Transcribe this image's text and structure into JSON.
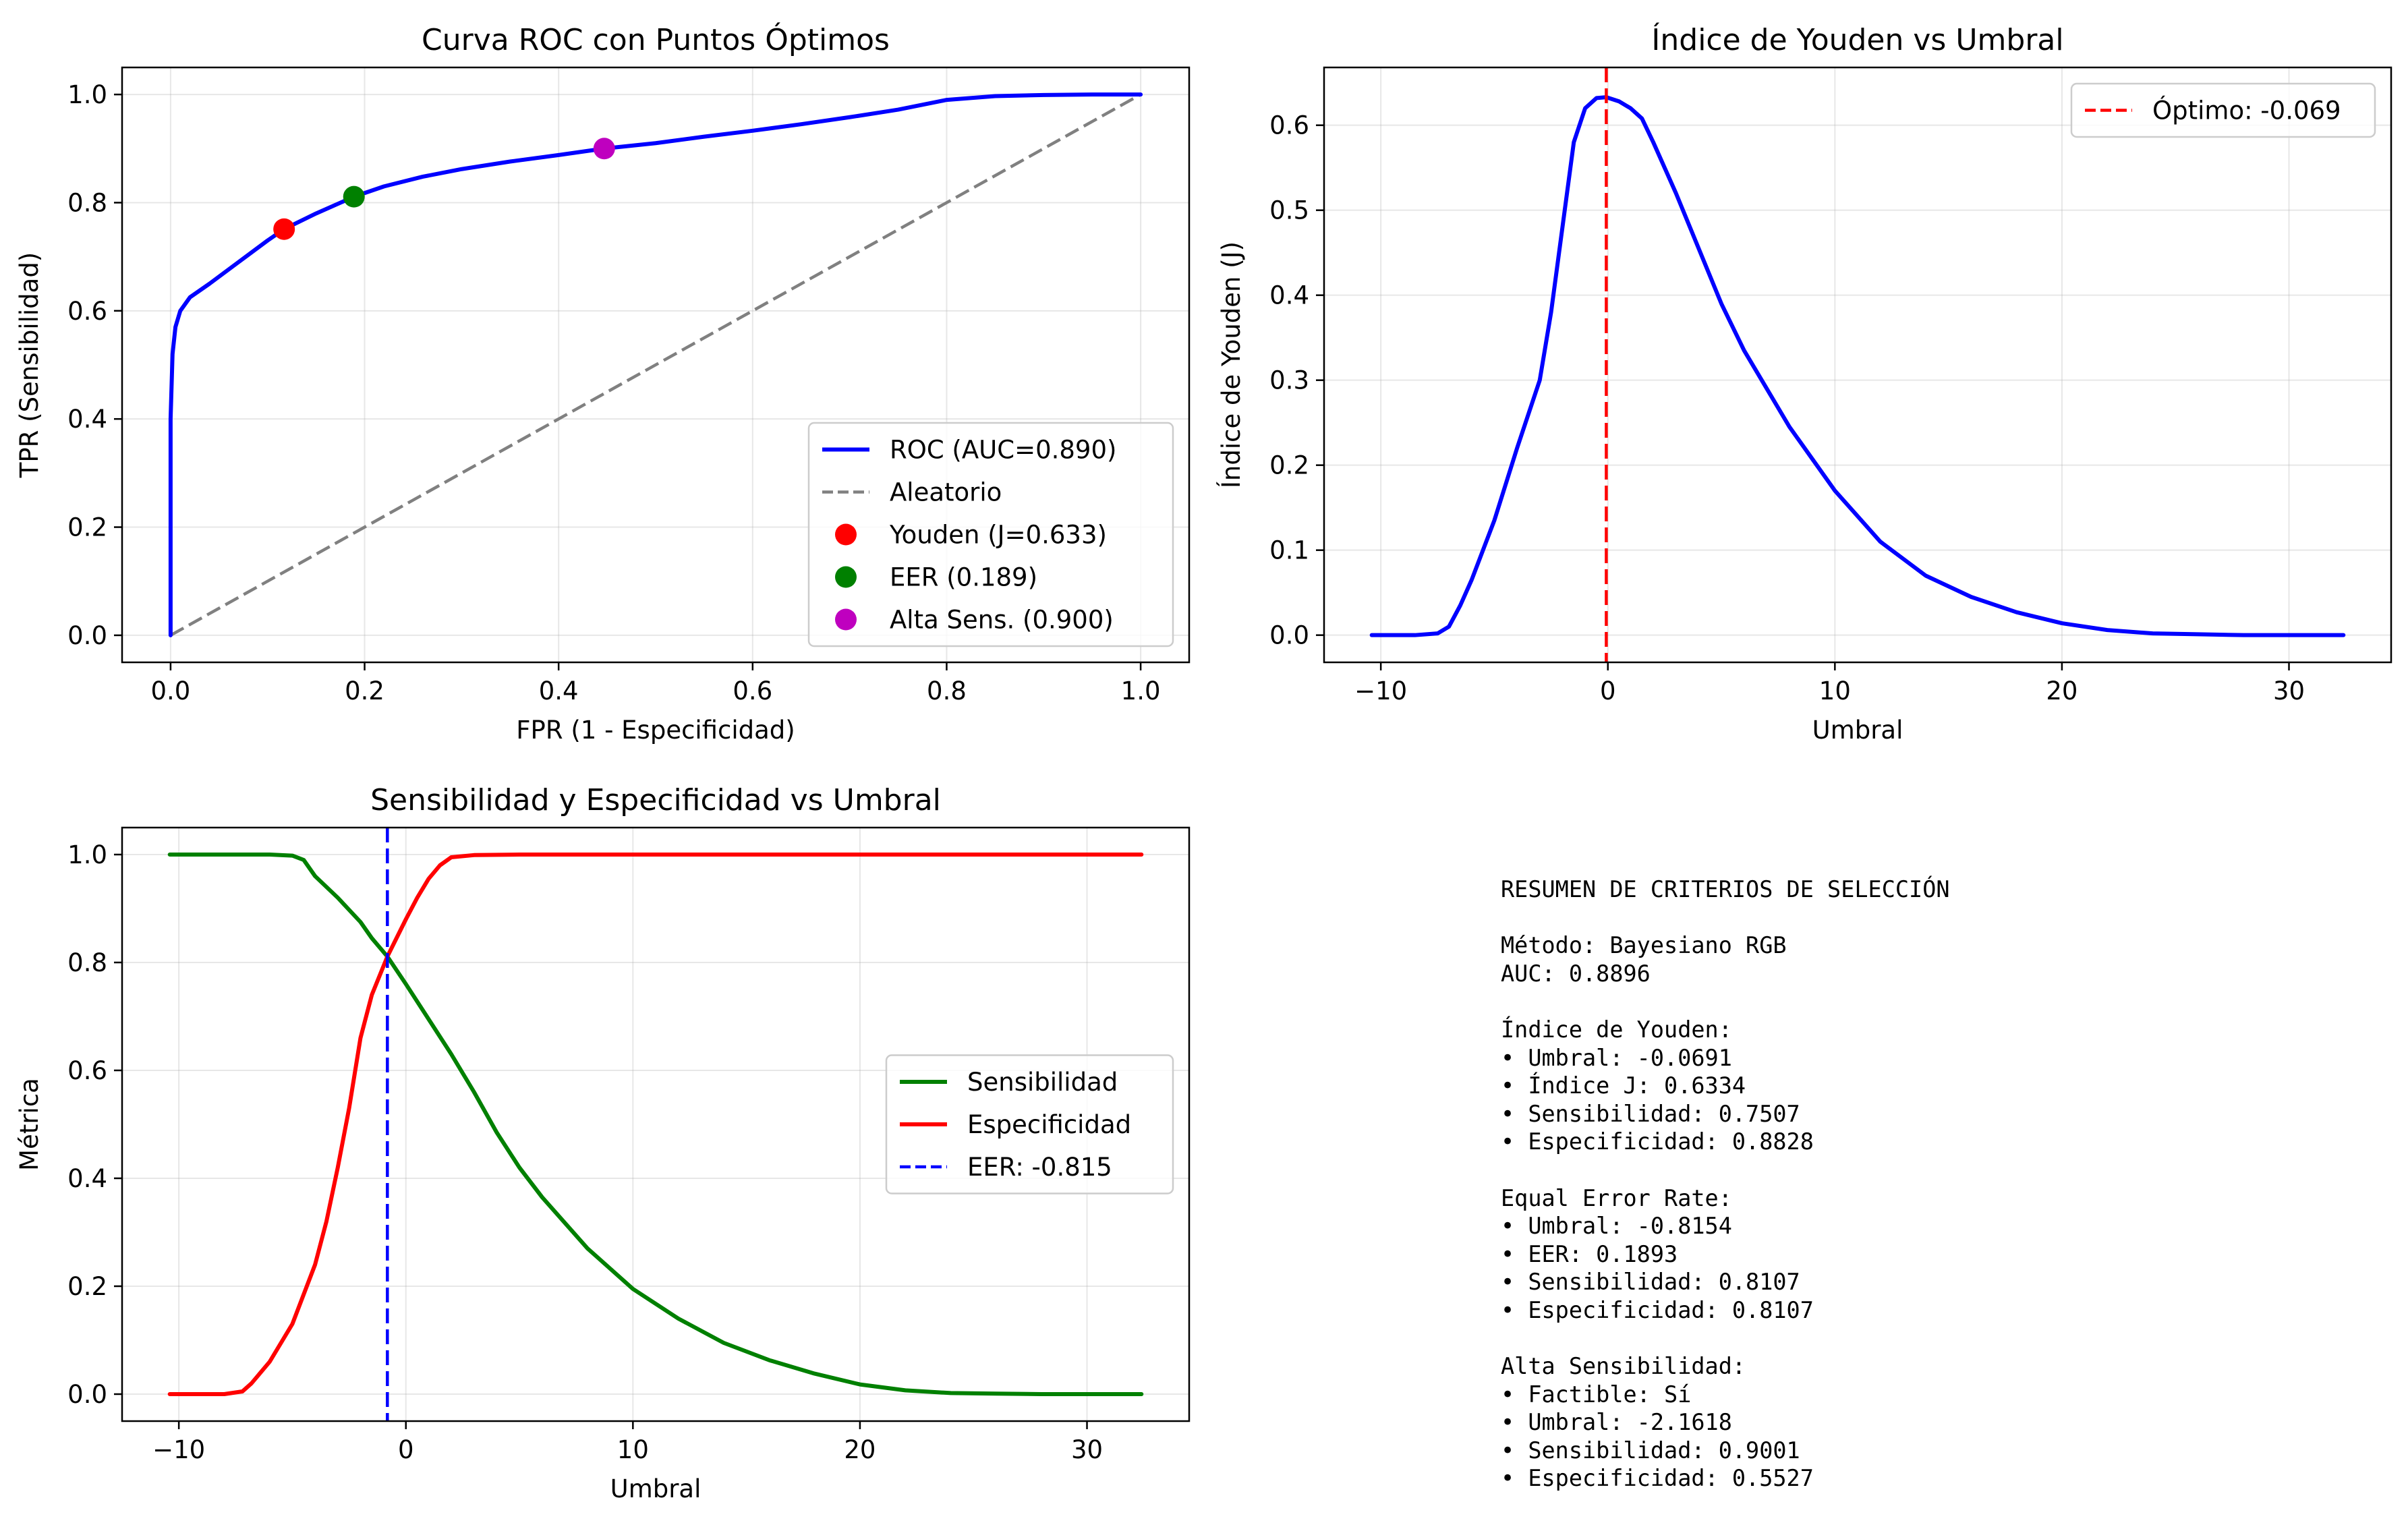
{
  "chart_data": [
    {
      "type": "line",
      "title": "Curva ROC con Puntos Óptimos",
      "xlabel": "FPR (1 - Especificidad)",
      "ylabel": "TPR (Sensibilidad)",
      "xlim": [
        -0.05,
        1.05
      ],
      "ylim": [
        -0.05,
        1.05
      ],
      "xticks": [
        0.0,
        0.2,
        0.4,
        0.6,
        0.8,
        1.0
      ],
      "yticks": [
        0.0,
        0.2,
        0.4,
        0.6,
        0.8,
        1.0
      ],
      "grid": true,
      "legend_position": "lower right",
      "series": [
        {
          "name": "ROC (AUC=0.890)",
          "color": "#0000ff",
          "style": "solid",
          "x": [
            0,
            0.0,
            0.002,
            0.005,
            0.01,
            0.02,
            0.04,
            0.07,
            0.1,
            0.117,
            0.15,
            0.189,
            0.22,
            0.26,
            0.3,
            0.35,
            0.4,
            0.447,
            0.5,
            0.55,
            0.6,
            0.65,
            0.7,
            0.75,
            0.8,
            0.85,
            0.9,
            0.95,
            1.0
          ],
          "y": [
            0,
            0.4,
            0.52,
            0.57,
            0.6,
            0.625,
            0.65,
            0.69,
            0.73,
            0.751,
            0.78,
            0.811,
            0.83,
            0.848,
            0.862,
            0.876,
            0.888,
            0.9,
            0.91,
            0.922,
            0.933,
            0.945,
            0.958,
            0.972,
            0.99,
            0.997,
            0.999,
            1.0,
            1.0
          ]
        },
        {
          "name": "Aleatorio",
          "color": "#808080",
          "style": "dashed",
          "x": [
            0,
            1
          ],
          "y": [
            0,
            1
          ]
        }
      ],
      "points": [
        {
          "name": "Youden (J=0.633)",
          "color": "#ff0000",
          "x": 0.117,
          "y": 0.751
        },
        {
          "name": "EER (0.189)",
          "color": "#008000",
          "x": 0.189,
          "y": 0.811
        },
        {
          "name": "Alta Sens. (0.900)",
          "color": "#bf00bf",
          "x": 0.447,
          "y": 0.9
        }
      ]
    },
    {
      "type": "line",
      "title": "Índice de Youden vs Umbral",
      "xlabel": "Umbral",
      "ylabel": "Índice de Youden (J)",
      "xlim": [
        -12.5,
        34.5
      ],
      "ylim": [
        -0.032,
        0.668
      ],
      "xticks": [
        -10,
        0,
        10,
        20,
        30
      ],
      "yticks": [
        0.0,
        0.1,
        0.2,
        0.3,
        0.4,
        0.5,
        0.6
      ],
      "grid": true,
      "legend_position": "upper right",
      "series": [
        {
          "name": "",
          "color": "#0000ff",
          "style": "solid",
          "x": [
            -10.4,
            -8.5,
            -7.5,
            -7.0,
            -6.5,
            -6.0,
            -5.5,
            -5.0,
            -4.0,
            -3.0,
            -2.5,
            -2.0,
            -1.5,
            -1.0,
            -0.5,
            -0.069,
            0.5,
            1.0,
            1.5,
            2.0,
            3.0,
            4.0,
            5.0,
            6.0,
            8.0,
            10.0,
            12.0,
            14.0,
            16.0,
            18.0,
            20.0,
            22.0,
            24.0,
            26.0,
            28.0,
            32.4
          ],
          "y": [
            0.0,
            0.0,
            0.002,
            0.01,
            0.035,
            0.065,
            0.1,
            0.135,
            0.22,
            0.3,
            0.38,
            0.48,
            0.58,
            0.62,
            0.632,
            0.633,
            0.628,
            0.62,
            0.608,
            0.58,
            0.52,
            0.455,
            0.39,
            0.335,
            0.245,
            0.17,
            0.11,
            0.07,
            0.045,
            0.027,
            0.014,
            0.006,
            0.002,
            0.001,
            0.0,
            0.0
          ]
        }
      ],
      "vlines": [
        {
          "name": "Óptimo: -0.069",
          "color": "#ff0000",
          "style": "dashed",
          "x": -0.069
        }
      ]
    },
    {
      "type": "line",
      "title": "Sensibilidad y Especificidad vs Umbral",
      "xlabel": "Umbral",
      "ylabel": "Métrica",
      "xlim": [
        -12.5,
        34.5
      ],
      "ylim": [
        -0.05,
        1.05
      ],
      "xticks": [
        -10,
        0,
        10,
        20,
        30
      ],
      "yticks": [
        0.0,
        0.2,
        0.4,
        0.6,
        0.8,
        1.0
      ],
      "grid": true,
      "legend_position": "center right",
      "series": [
        {
          "name": "Sensibilidad",
          "color": "#008000",
          "style": "solid",
          "x": [
            -10.4,
            -8.0,
            -6.0,
            -5.0,
            -4.5,
            -4.0,
            -3.0,
            -2.0,
            -1.5,
            -0.815,
            0.0,
            1.0,
            2.0,
            3.0,
            4.0,
            5.0,
            6.0,
            8.0,
            10.0,
            12.0,
            14.0,
            16.0,
            18.0,
            20.0,
            22.0,
            24.0,
            26.0,
            28.0,
            32.4
          ],
          "y": [
            1.0,
            1.0,
            1.0,
            0.998,
            0.99,
            0.96,
            0.92,
            0.875,
            0.845,
            0.811,
            0.76,
            0.695,
            0.63,
            0.56,
            0.485,
            0.42,
            0.365,
            0.27,
            0.195,
            0.14,
            0.095,
            0.063,
            0.038,
            0.018,
            0.007,
            0.002,
            0.001,
            0.0,
            0.0
          ]
        },
        {
          "name": "Especificidad",
          "color": "#ff0000",
          "style": "solid",
          "x": [
            -10.4,
            -8.0,
            -7.2,
            -6.8,
            -6.0,
            -5.0,
            -4.0,
            -3.5,
            -3.0,
            -2.5,
            -2.0,
            -1.5,
            -0.815,
            0.0,
            0.5,
            1.0,
            1.5,
            2.0,
            3.0,
            5.0,
            10.0,
            20.0,
            32.4
          ],
          "y": [
            0.0,
            0.0,
            0.005,
            0.02,
            0.06,
            0.13,
            0.24,
            0.32,
            0.42,
            0.53,
            0.66,
            0.74,
            0.811,
            0.88,
            0.92,
            0.955,
            0.98,
            0.995,
            0.999,
            1.0,
            1.0,
            1.0,
            1.0
          ]
        }
      ],
      "vlines": [
        {
          "name": "EER: -0.815",
          "color": "#0000ff",
          "style": "dashed",
          "x": -0.815
        }
      ]
    }
  ],
  "summary": {
    "lines": [
      "RESUMEN DE CRITERIOS DE SELECCIÓN",
      "",
      "Método: Bayesiano RGB",
      "AUC: 0.8896",
      "",
      "Índice de Youden:",
      "• Umbral: -0.0691",
      "• Índice J: 0.6334",
      "• Sensibilidad: 0.7507",
      "• Especificidad: 0.8828",
      "",
      "Equal Error Rate:",
      "• Umbral: -0.8154",
      "• EER: 0.1893",
      "• Sensibilidad: 0.8107",
      "• Especificidad: 0.8107",
      "",
      "Alta Sensibilidad:",
      "• Factible: Sí",
      "• Umbral: -2.1618",
      "• Sensibilidad: 0.9001",
      "• Especificidad: 0.5527"
    ]
  }
}
